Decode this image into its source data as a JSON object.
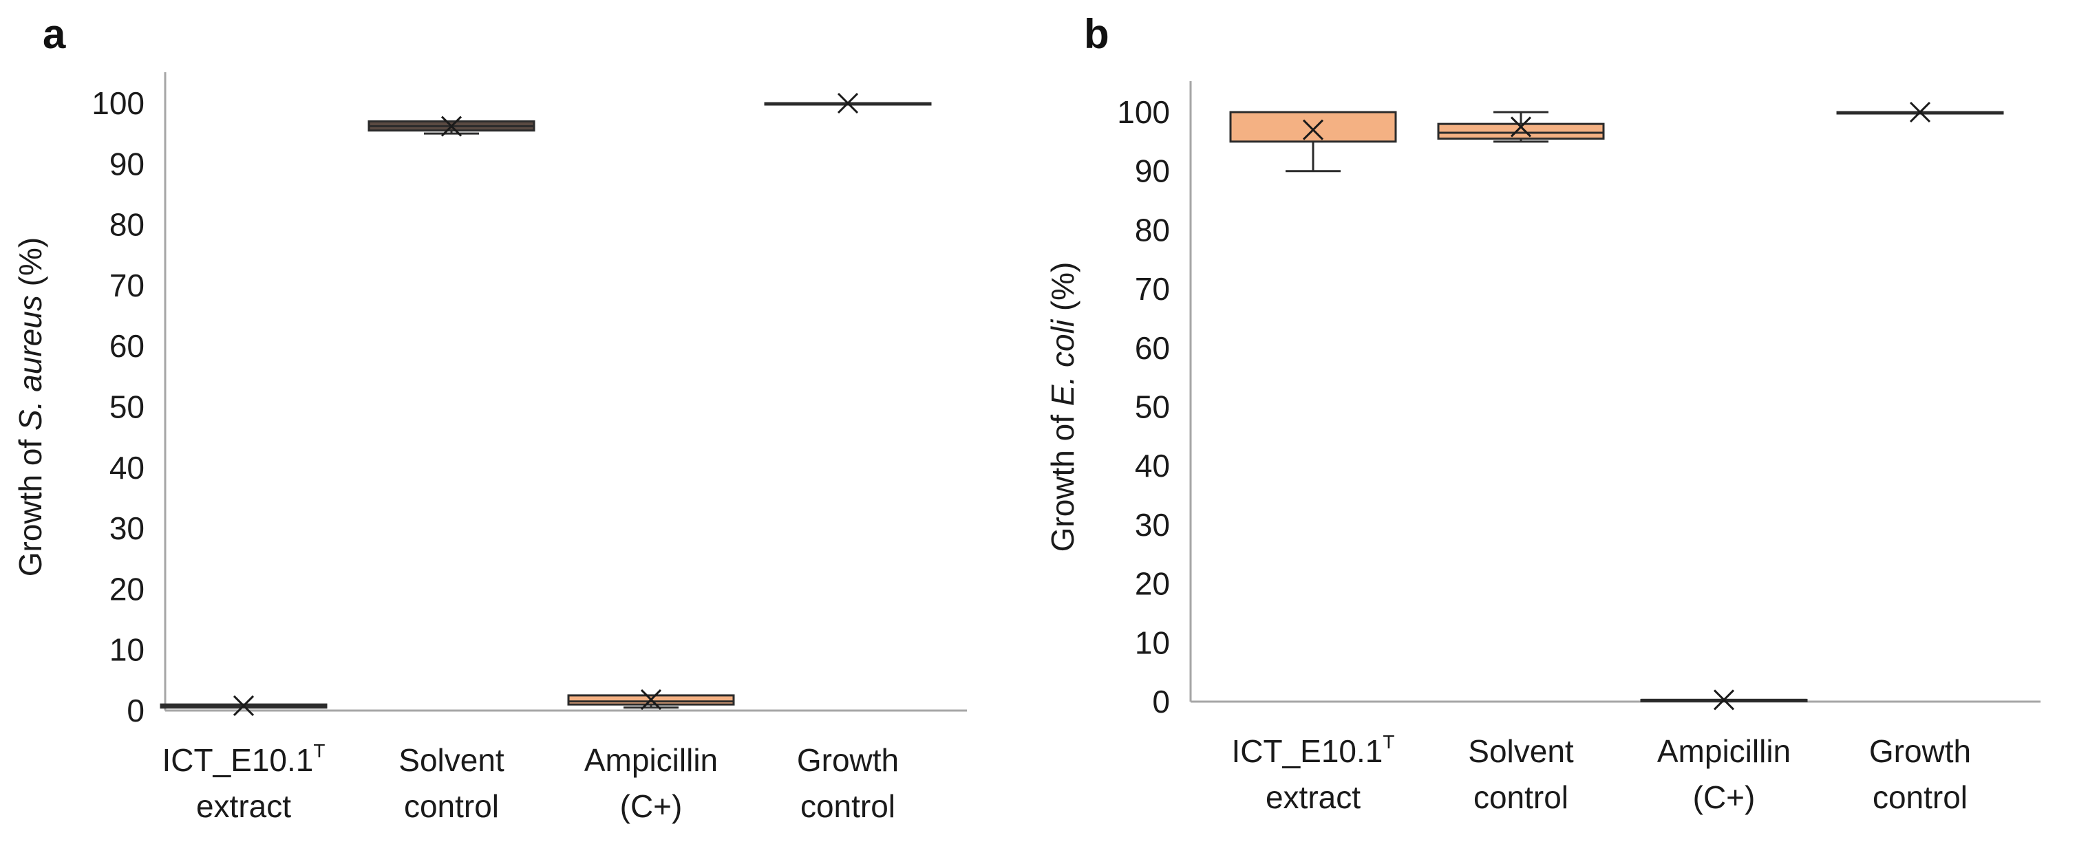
{
  "chart_data": [
    {
      "panel_label": "a",
      "type": "box",
      "title": "",
      "ylabel": {
        "prefix": "Growth of ",
        "italic": "S. aureus",
        "suffix": " (%)"
      },
      "xlabel": "",
      "ylim": [
        0,
        100
      ],
      "yticks": [
        0,
        10,
        20,
        30,
        40,
        50,
        60,
        70,
        80,
        90,
        100
      ],
      "grid": false,
      "categories": [
        {
          "line1": "ICT_E10.1",
          "sup": "T",
          "line2": "extract"
        },
        {
          "line1": "Solvent",
          "sup": "",
          "line2": "control"
        },
        {
          "line1": "Ampicillin",
          "sup": "",
          "line2": "(C+)"
        },
        {
          "line1": "Growth",
          "sup": "",
          "line2": "control"
        }
      ],
      "boxes": [
        {
          "min": 0.5,
          "q1": 0.5,
          "median": 0.8,
          "q3": 1.0,
          "max": 1.0,
          "mean": 0.8,
          "fill": "#808080"
        },
        {
          "min": 95.0,
          "q1": 95.5,
          "median": 96.2,
          "q3": 97.0,
          "max": 97.0,
          "mean": 96.2,
          "fill": "#5a4a42"
        },
        {
          "min": 0.5,
          "q1": 1.0,
          "median": 1.5,
          "q3": 2.5,
          "max": 2.5,
          "mean": 1.8,
          "fill": "#f4b183"
        },
        {
          "min": 100,
          "q1": 100,
          "median": 100,
          "q3": 100,
          "max": 100,
          "mean": 100,
          "fill": "#f4b183"
        }
      ]
    },
    {
      "panel_label": "b",
      "type": "box",
      "title": "",
      "ylabel": {
        "prefix": "Growth of ",
        "italic": "E. coli",
        "suffix": " (%)"
      },
      "xlabel": "",
      "ylim": [
        0,
        100
      ],
      "yticks": [
        0,
        10,
        20,
        30,
        40,
        50,
        60,
        70,
        80,
        90,
        100
      ],
      "grid": false,
      "categories": [
        {
          "line1": "ICT_E10.1",
          "sup": "T",
          "line2": "extract"
        },
        {
          "line1": "Solvent",
          "sup": "",
          "line2": "control"
        },
        {
          "line1": "Ampicillin",
          "sup": "",
          "line2": "(C+)"
        },
        {
          "line1": "Growth",
          "sup": "",
          "line2": "control"
        }
      ],
      "boxes": [
        {
          "min": 90,
          "q1": 95,
          "median": 100,
          "q3": 100,
          "max": 100,
          "mean": 97,
          "fill": "#f4b183"
        },
        {
          "min": 95,
          "q1": 95.5,
          "median": 96.5,
          "q3": 98,
          "max": 100,
          "mean": 97.5,
          "fill": "#f4b183"
        },
        {
          "min": 0.3,
          "q1": 0.3,
          "median": 0.3,
          "q3": 0.3,
          "max": 0.3,
          "mean": 0.3,
          "fill": "#f4b183"
        },
        {
          "min": 100,
          "q1": 100,
          "median": 100,
          "q3": 100,
          "max": 100,
          "mean": 100,
          "fill": "#f4b183"
        }
      ]
    }
  ],
  "colors": {
    "axis": "#a6a6a6",
    "box_outline": "#2b2b2b",
    "box_fill": "#f4b183"
  }
}
